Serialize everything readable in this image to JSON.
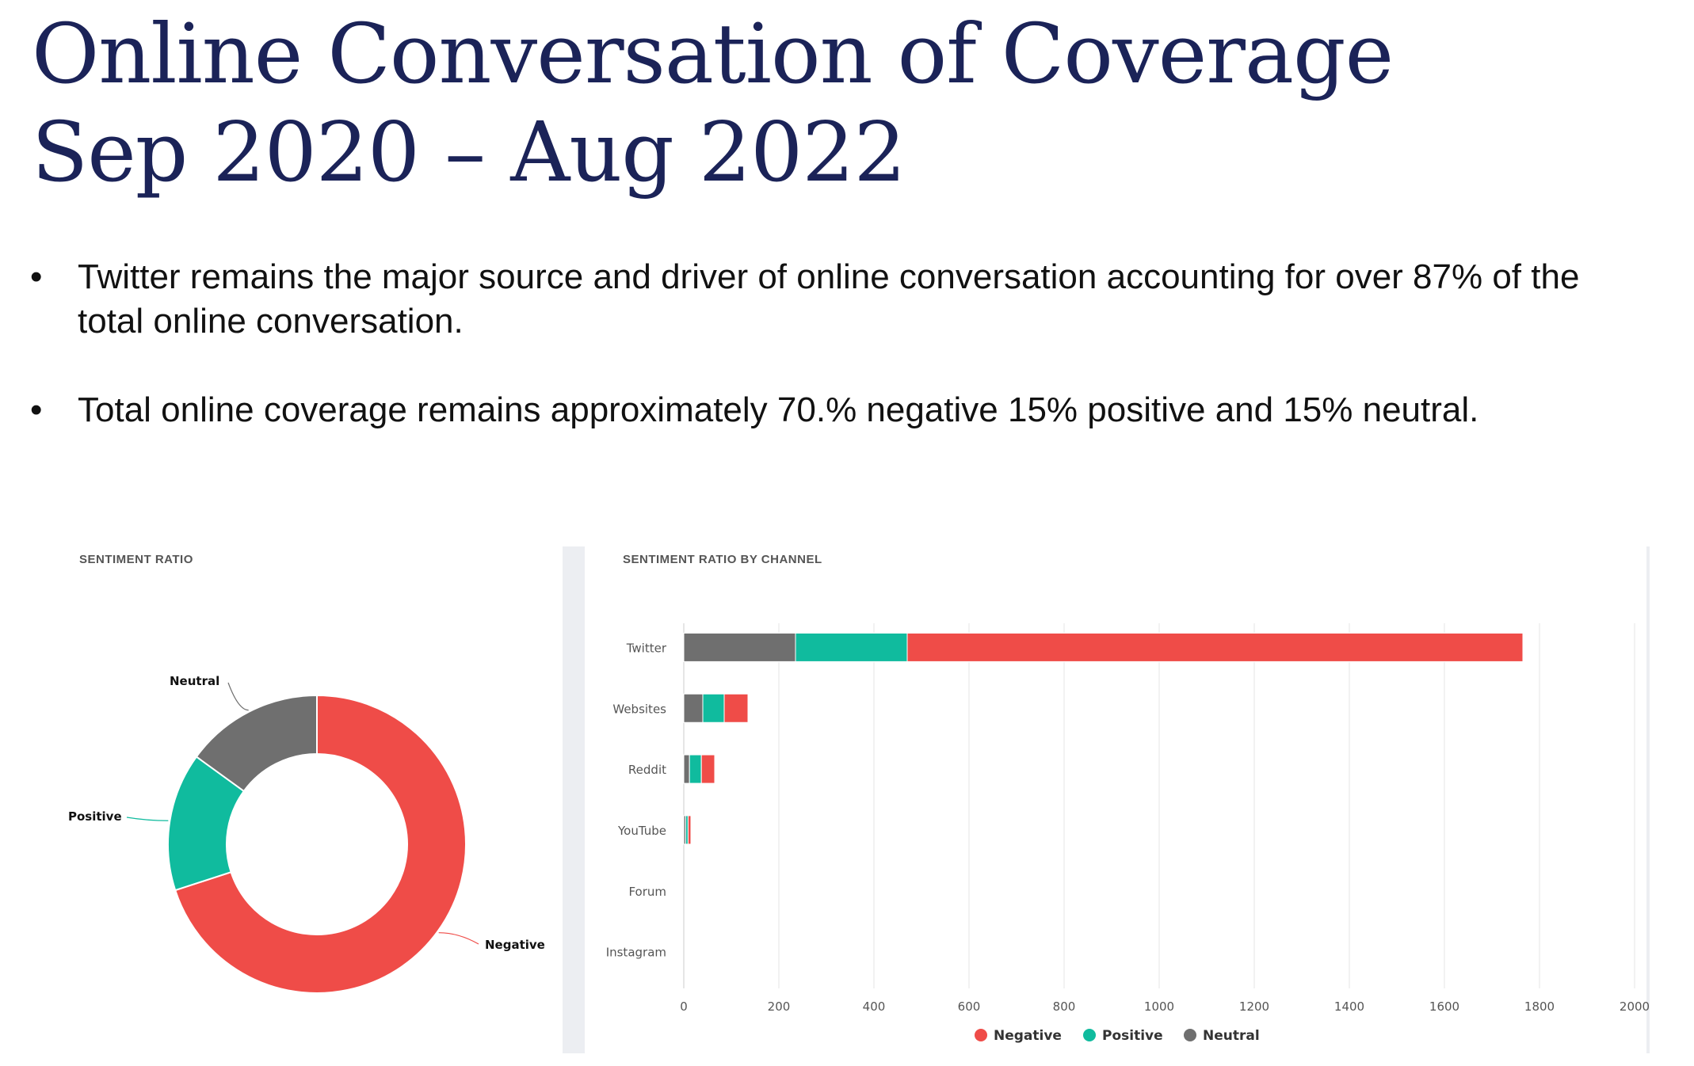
{
  "title": {
    "line1": "Online Conversation of Coverage",
    "line2": "Sep 2020 – Aug 2022"
  },
  "bullets": [
    {
      "marker": "•",
      "text": "Twitter remains the major source and driver of online conversation accounting for over 87% of the total online conversation."
    },
    {
      "marker": "•",
      "text": "Total online coverage remains approximately 70.% negative 15% positive and 15% neutral."
    }
  ],
  "colors": {
    "negative": "#ef4c48",
    "positive": "#10bb9e",
    "neutral": "#6f6f6f",
    "title": "#1b2358",
    "grid": "#e6e6e6"
  },
  "chart_data": [
    {
      "type": "pie",
      "title": "SENTIMENT RATIO",
      "donut": true,
      "labels": [
        "Negative",
        "Positive",
        "Neutral"
      ],
      "values": [
        70,
        15,
        15
      ]
    },
    {
      "type": "bar",
      "orientation": "horizontal",
      "stacked": true,
      "title": "SENTIMENT RATIO BY CHANNEL",
      "categories": [
        "Twitter",
        "Websites",
        "Reddit",
        "YouTube",
        "Forum",
        "Instagram"
      ],
      "series": [
        {
          "name": "Neutral",
          "values": [
            235,
            40,
            12,
            4,
            0,
            0
          ]
        },
        {
          "name": "Positive",
          "values": [
            235,
            45,
            25,
            5,
            0,
            0
          ]
        },
        {
          "name": "Negative",
          "values": [
            1295,
            50,
            28,
            6,
            0,
            0
          ]
        }
      ],
      "stack_order": [
        "Neutral",
        "Positive",
        "Negative"
      ],
      "xlim": [
        0,
        2000
      ],
      "xticks": [
        0,
        200,
        400,
        600,
        800,
        1000,
        1200,
        1400,
        1600,
        1800,
        2000
      ],
      "legend": {
        "position": "bottom",
        "entries": [
          "Negative",
          "Positive",
          "Neutral"
        ]
      },
      "grid": true
    }
  ]
}
